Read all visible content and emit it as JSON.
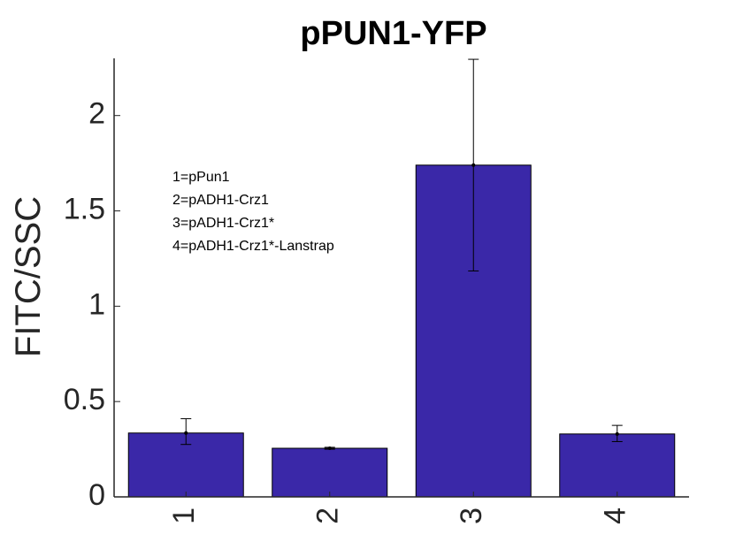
{
  "chart_data": {
    "type": "bar",
    "title": "pPUN1-YFP",
    "xlabel": "",
    "ylabel": "FITC/SSC",
    "categories": [
      "1",
      "2",
      "3",
      "4"
    ],
    "values": [
      0.335,
      0.255,
      1.74,
      0.33
    ],
    "error_bars": [
      {
        "low": 0.275,
        "high": 0.41
      },
      {
        "low": 0.25,
        "high": 0.26
      },
      {
        "low": 1.185,
        "high": 2.295
      },
      {
        "low": 0.29,
        "high": 0.375
      }
    ],
    "ylim": [
      0,
      2.3
    ],
    "yticks": [
      0,
      0.5,
      1,
      1.5,
      2
    ],
    "ytick_labels": [
      "0",
      "0.5",
      "1",
      "1.5",
      "2"
    ],
    "bar_color": "#3a28a8",
    "grid": false,
    "annotations": [
      "1=pPun1",
      "2=pADH1-Crz1",
      "3=pADH1-Crz1*",
      "4=pADH1-Crz1*-Lanstrap"
    ]
  }
}
